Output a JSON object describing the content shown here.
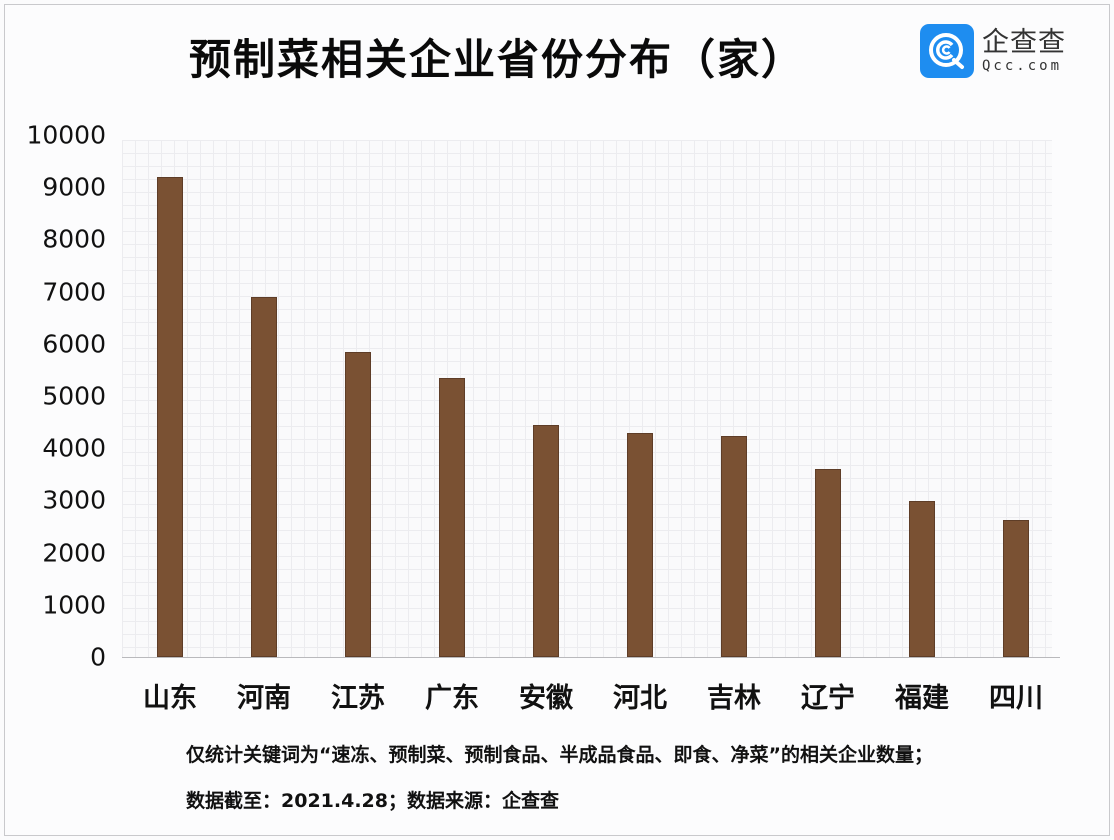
{
  "title": "预制菜相关企业省份分布（家）",
  "logo": {
    "name_cn": "企查查",
    "name_en": "Qcc.com",
    "icon": "qcc-logo-icon",
    "color": "#1e8df0"
  },
  "notes": {
    "line1": "仅统计关键词为“速冻、预制菜、预制食品、半成品食品、即食、净菜”的相关企业数量；",
    "line2": "数据截至：2021.4.28；数据来源：企查查"
  },
  "colors": {
    "bar": "#7a5133",
    "grid": "#ececef"
  },
  "chart_data": {
    "type": "bar",
    "title": "预制菜相关企业省份分布（家）",
    "xlabel": "",
    "ylabel": "",
    "categories": [
      "山东",
      "河南",
      "江苏",
      "广东",
      "安徽",
      "河北",
      "吉林",
      "辽宁",
      "福建",
      "四川"
    ],
    "values": [
      9200,
      6900,
      5850,
      5350,
      4450,
      4300,
      4230,
      3600,
      2990,
      2620
    ],
    "ylim": [
      0,
      10000
    ],
    "yticks": [
      "0",
      "1000",
      "2000",
      "3000",
      "4000",
      "5000",
      "6000",
      "7000",
      "8000",
      "9000",
      "10000"
    ],
    "grid": true,
    "legend": "none",
    "bar_color": "#7a5133"
  }
}
